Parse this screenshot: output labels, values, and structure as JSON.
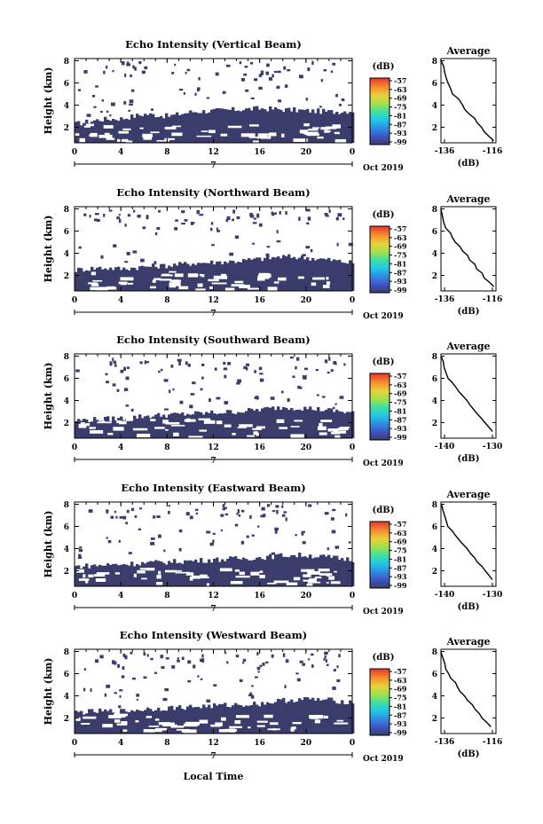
{
  "figure": {
    "common_xlabel": "Local Time",
    "date_label": "Oct 2019",
    "day_label": "7",
    "y_label": "Height (km)",
    "colorbar_unit": "(dB)",
    "colorbar_ticks": [
      "-57",
      "-63",
      "-69",
      "-75",
      "-81",
      "-87",
      "-93",
      "-99"
    ],
    "profile_title": "Average",
    "profile_xlabel": "(dB)",
    "colormap": [
      "#3a3d6b",
      "#3f56c8",
      "#2f8fe0",
      "#22c8e6",
      "#3fe0a0",
      "#a6e04a",
      "#e8d13a",
      "#f5902f",
      "#e8402e"
    ],
    "echo_color": "#3a3d6b"
  },
  "chart_data": [
    {
      "type": "heatmap",
      "title": "Echo Intensity (Vertical Beam)",
      "x_ticks": [
        "0",
        "4",
        "8",
        "12",
        "16",
        "20",
        "0"
      ],
      "y_ticks": [
        "2",
        "4",
        "6",
        "8"
      ],
      "xlim": [
        0,
        24
      ],
      "ylim": [
        0.6,
        8.2
      ],
      "echo_top_km": [
        [
          0,
          2.3
        ],
        [
          2,
          2.7
        ],
        [
          4,
          2.8
        ],
        [
          6,
          3.2
        ],
        [
          8,
          3.0
        ],
        [
          10,
          3.4
        ],
        [
          12,
          3.5
        ],
        [
          14,
          3.6
        ],
        [
          16,
          3.7
        ],
        [
          18,
          3.6
        ],
        [
          20,
          3.5
        ],
        [
          22,
          3.4
        ],
        [
          24,
          3.5
        ]
      ],
      "profile": {
        "xlim": [
          -136,
          -113
        ],
        "x_ticks": [
          "-136",
          "-116"
        ],
        "y_ticks": [
          "2",
          "4",
          "6",
          "8"
        ],
        "points": [
          [
            -136,
            8.1
          ],
          [
            -135,
            7.5
          ],
          [
            -134.5,
            7.0
          ],
          [
            -134,
            6.5
          ],
          [
            -133,
            6.0
          ],
          [
            -132,
            5.5
          ],
          [
            -131,
            5.0
          ],
          [
            -129,
            4.6
          ],
          [
            -128,
            4.4
          ],
          [
            -127,
            4.0
          ],
          [
            -126,
            3.6
          ],
          [
            -124,
            3.2
          ],
          [
            -122,
            2.8
          ],
          [
            -121,
            2.4
          ],
          [
            -119,
            2.0
          ],
          [
            -118,
            1.6
          ],
          [
            -116,
            1.2
          ],
          [
            -114,
            0.8
          ]
        ]
      }
    },
    {
      "type": "heatmap",
      "title": "Echo Intensity (Northward Beam)",
      "x_ticks": [
        "0",
        "4",
        "8",
        "12",
        "16",
        "20",
        "0"
      ],
      "y_ticks": [
        "2",
        "4",
        "6",
        "8"
      ],
      "xlim": [
        0,
        24
      ],
      "ylim": [
        0.6,
        8.2
      ],
      "echo_top_km": [
        [
          0,
          2.5
        ],
        [
          2,
          2.7
        ],
        [
          4,
          2.6
        ],
        [
          6,
          2.8
        ],
        [
          8,
          2.9
        ],
        [
          10,
          3.1
        ],
        [
          12,
          3.2
        ],
        [
          14,
          3.3
        ],
        [
          16,
          3.5
        ],
        [
          18,
          3.7
        ],
        [
          20,
          3.6
        ],
        [
          22,
          3.4
        ],
        [
          24,
          3.1
        ]
      ],
      "profile": {
        "xlim": [
          -136,
          -113
        ],
        "x_ticks": [
          "-136",
          "-116"
        ],
        "y_ticks": [
          "2",
          "4",
          "6",
          "8"
        ],
        "points": [
          [
            -136,
            8.0
          ],
          [
            -135.5,
            7.4
          ],
          [
            -135,
            6.8
          ],
          [
            -134,
            6.3
          ],
          [
            -132,
            5.8
          ],
          [
            -131,
            5.4
          ],
          [
            -130,
            5.0
          ],
          [
            -128,
            4.6
          ],
          [
            -127,
            4.2
          ],
          [
            -125,
            3.8
          ],
          [
            -124,
            3.4
          ],
          [
            -122,
            3.0
          ],
          [
            -121,
            2.6
          ],
          [
            -119,
            2.2
          ],
          [
            -118,
            1.8
          ],
          [
            -116,
            1.4
          ],
          [
            -114,
            1.0
          ]
        ]
      }
    },
    {
      "type": "heatmap",
      "title": "Echo Intensity (Southward Beam)",
      "x_ticks": [
        "0",
        "4",
        "8",
        "12",
        "16",
        "20",
        "0"
      ],
      "y_ticks": [
        "2",
        "4",
        "6",
        "8"
      ],
      "xlim": [
        0,
        24
      ],
      "ylim": [
        0.6,
        8.2
      ],
      "echo_top_km": [
        [
          0,
          2.2
        ],
        [
          2,
          2.3
        ],
        [
          4,
          2.4
        ],
        [
          6,
          2.6
        ],
        [
          8,
          2.7
        ],
        [
          10,
          2.8
        ],
        [
          12,
          2.9
        ],
        [
          14,
          3.0
        ],
        [
          16,
          3.2
        ],
        [
          18,
          3.4
        ],
        [
          20,
          3.3
        ],
        [
          22,
          3.1
        ],
        [
          24,
          2.9
        ]
      ],
      "profile": {
        "xlim": [
          -140,
          -125
        ],
        "x_ticks": [
          "-140",
          "-130"
        ],
        "y_ticks": [
          "2",
          "4",
          "6",
          "8"
        ],
        "points": [
          [
            -140,
            8.0
          ],
          [
            -139.5,
            7.5
          ],
          [
            -139,
            7.0
          ],
          [
            -138.5,
            6.5
          ],
          [
            -138,
            6.0
          ],
          [
            -137,
            5.6
          ],
          [
            -136,
            5.2
          ],
          [
            -135,
            4.8
          ],
          [
            -134,
            4.4
          ],
          [
            -133,
            4.0
          ],
          [
            -132,
            3.6
          ],
          [
            -131,
            3.2
          ],
          [
            -130,
            2.8
          ],
          [
            -129,
            2.4
          ],
          [
            -128,
            2.0
          ],
          [
            -127,
            1.6
          ],
          [
            -126,
            1.2
          ]
        ]
      }
    },
    {
      "type": "heatmap",
      "title": "Echo Intensity (Eastward Beam)",
      "x_ticks": [
        "0",
        "4",
        "8",
        "12",
        "16",
        "20",
        "0"
      ],
      "y_ticks": [
        "2",
        "4",
        "6",
        "8"
      ],
      "xlim": [
        0,
        24
      ],
      "ylim": [
        0.6,
        8.2
      ],
      "echo_top_km": [
        [
          0,
          2.4
        ],
        [
          2,
          2.5
        ],
        [
          4,
          2.6
        ],
        [
          6,
          2.7
        ],
        [
          8,
          2.8
        ],
        [
          10,
          2.9
        ],
        [
          12,
          3.0
        ],
        [
          14,
          3.1
        ],
        [
          16,
          3.2
        ],
        [
          18,
          3.4
        ],
        [
          20,
          3.4
        ],
        [
          22,
          3.2
        ],
        [
          24,
          3.0
        ]
      ],
      "profile": {
        "xlim": [
          -140,
          -125
        ],
        "x_ticks": [
          "-140",
          "-130"
        ],
        "y_ticks": [
          "2",
          "4",
          "6",
          "8"
        ],
        "points": [
          [
            -140,
            8.0
          ],
          [
            -139.5,
            7.5
          ],
          [
            -139,
            7.0
          ],
          [
            -138.5,
            6.5
          ],
          [
            -138,
            6.0
          ],
          [
            -137,
            5.6
          ],
          [
            -136,
            5.2
          ],
          [
            -135,
            4.8
          ],
          [
            -134,
            4.4
          ],
          [
            -133,
            4.0
          ],
          [
            -132,
            3.6
          ],
          [
            -131,
            3.2
          ],
          [
            -130,
            2.8
          ],
          [
            -129,
            2.4
          ],
          [
            -128,
            2.0
          ],
          [
            -127,
            1.6
          ],
          [
            -126,
            1.2
          ]
        ]
      }
    },
    {
      "type": "heatmap",
      "title": "Echo Intensity (Westward Beam)",
      "x_ticks": [
        "0",
        "4",
        "8",
        "12",
        "16",
        "20",
        "0"
      ],
      "y_ticks": [
        "2",
        "4",
        "6",
        "8"
      ],
      "xlim": [
        0,
        24
      ],
      "ylim": [
        0.6,
        8.2
      ],
      "echo_top_km": [
        [
          0,
          2.5
        ],
        [
          2,
          2.6
        ],
        [
          4,
          2.6
        ],
        [
          6,
          2.8
        ],
        [
          8,
          2.9
        ],
        [
          10,
          3.0
        ],
        [
          12,
          3.1
        ],
        [
          14,
          3.2
        ],
        [
          16,
          3.3
        ],
        [
          18,
          3.6
        ],
        [
          20,
          3.7
        ],
        [
          22,
          3.6
        ],
        [
          24,
          3.4
        ]
      ],
      "profile": {
        "xlim": [
          -136,
          -113
        ],
        "x_ticks": [
          "-136",
          "-116"
        ],
        "y_ticks": [
          "2",
          "4",
          "6",
          "8"
        ],
        "points": [
          [
            -136,
            8.0
          ],
          [
            -135,
            7.4
          ],
          [
            -134.5,
            6.9
          ],
          [
            -134,
            6.4
          ],
          [
            -133,
            6.0
          ],
          [
            -132,
            5.6
          ],
          [
            -130,
            5.2
          ],
          [
            -129,
            4.8
          ],
          [
            -128,
            4.4
          ],
          [
            -126,
            4.0
          ],
          [
            -125,
            3.6
          ],
          [
            -123,
            3.2
          ],
          [
            -122,
            2.8
          ],
          [
            -120,
            2.4
          ],
          [
            -119,
            2.0
          ],
          [
            -117,
            1.6
          ],
          [
            -115,
            1.2
          ]
        ]
      }
    }
  ]
}
